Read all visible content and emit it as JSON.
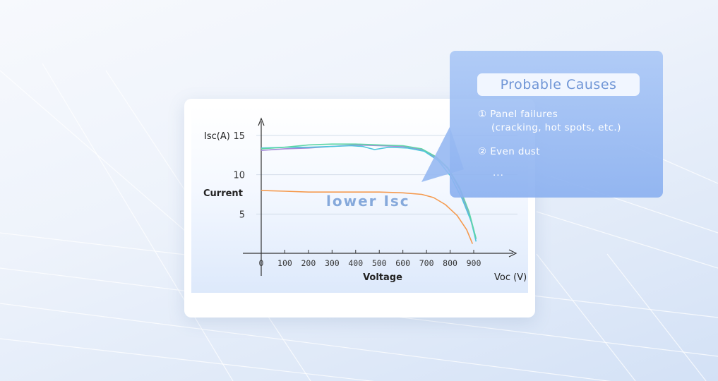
{
  "chart_data": {
    "type": "line",
    "ylabel_unit": "Isc(A)",
    "ylabel": "Current",
    "xlabel": "Voltage",
    "xlabel_unit": "Voc (V)",
    "x_ticks": [
      "0",
      "100",
      "200",
      "300",
      "400",
      "500",
      "600",
      "700",
      "800",
      "900"
    ],
    "y_ticks": [
      "5",
      "10",
      "15"
    ],
    "xlim": [
      0,
      1050
    ],
    "ylim": [
      0,
      17
    ],
    "annotation": "lower Isc",
    "series": [
      {
        "color": "#a58ad8",
        "points": [
          [
            0,
            13.1
          ],
          [
            100,
            13.3
          ],
          [
            200,
            13.4
          ],
          [
            300,
            13.6
          ],
          [
            400,
            13.8
          ],
          [
            500,
            13.7
          ],
          [
            600,
            13.6
          ],
          [
            680,
            13.2
          ],
          [
            740,
            12.2
          ],
          [
            790,
            10.8
          ],
          [
            840,
            8.2
          ],
          [
            880,
            5.0
          ],
          [
            910,
            1.8
          ]
        ]
      },
      {
        "color": "#4ec6dc",
        "points": [
          [
            0,
            13.4
          ],
          [
            100,
            13.5
          ],
          [
            200,
            13.5
          ],
          [
            300,
            13.6
          ],
          [
            380,
            13.7
          ],
          [
            430,
            13.6
          ],
          [
            480,
            13.2
          ],
          [
            540,
            13.5
          ],
          [
            620,
            13.4
          ],
          [
            690,
            13.0
          ],
          [
            750,
            11.8
          ],
          [
            800,
            9.9
          ],
          [
            850,
            7.0
          ],
          [
            890,
            4.0
          ],
          [
            910,
            1.5
          ]
        ]
      },
      {
        "color": "#5fd6a6",
        "points": [
          [
            0,
            13.3
          ],
          [
            100,
            13.5
          ],
          [
            200,
            13.8
          ],
          [
            300,
            13.9
          ],
          [
            400,
            13.9
          ],
          [
            500,
            13.8
          ],
          [
            600,
            13.7
          ],
          [
            680,
            13.3
          ],
          [
            740,
            12.3
          ],
          [
            790,
            10.9
          ],
          [
            840,
            8.4
          ],
          [
            880,
            5.3
          ],
          [
            910,
            1.9
          ]
        ]
      },
      {
        "color": "#f59a4e",
        "points": [
          [
            0,
            8.0
          ],
          [
            100,
            7.9
          ],
          [
            200,
            7.8
          ],
          [
            300,
            7.8
          ],
          [
            400,
            7.8
          ],
          [
            500,
            7.8
          ],
          [
            600,
            7.7
          ],
          [
            680,
            7.5
          ],
          [
            730,
            7.1
          ],
          [
            780,
            6.2
          ],
          [
            830,
            4.8
          ],
          [
            870,
            3.0
          ],
          [
            895,
            1.2
          ]
        ]
      }
    ]
  },
  "causes": {
    "title": "Probable Causes",
    "item1": "① Panel failures",
    "item1_sub": "(cracking, hot spots, etc.)",
    "item2": "② Even dust",
    "more": "..."
  }
}
